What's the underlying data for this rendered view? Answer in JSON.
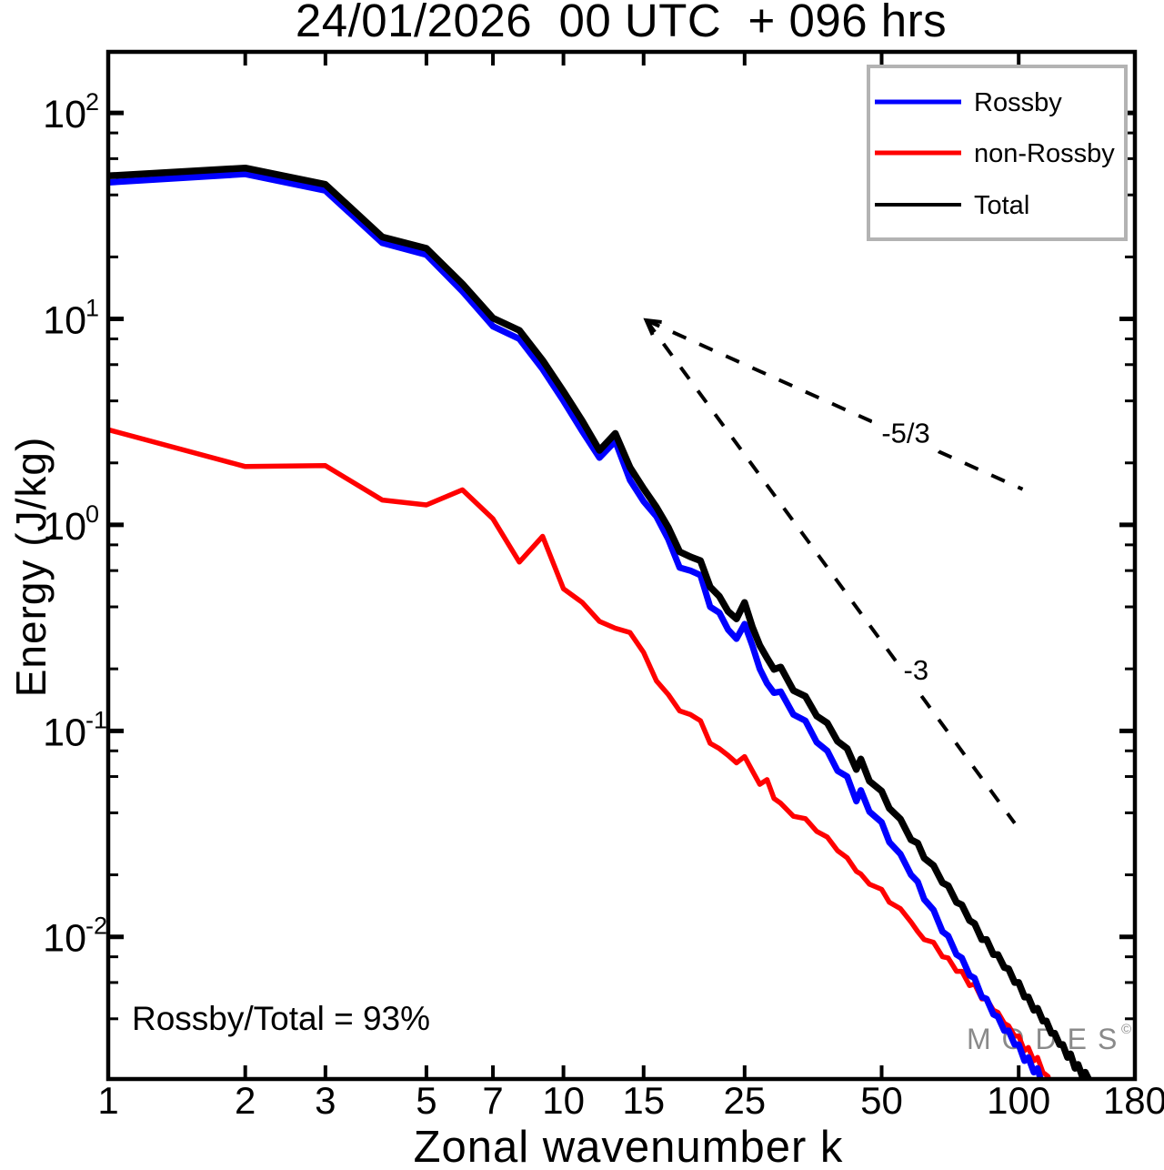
{
  "title": "24/01/2026  00 UTC  + 096 hrs",
  "annotation": "Rossby/Total = 93%",
  "watermark": {
    "text": "MODES",
    "mark": "©",
    "color": "#8a8a8a"
  },
  "axes": {
    "xlabel": "Zonal wavenumber k",
    "ylabel": "Energy (J/kg)",
    "xlim": [
      1,
      180
    ],
    "ylim": [
      0.00204,
      198
    ],
    "xticks": [
      1,
      2,
      3,
      5,
      7,
      10,
      15,
      25,
      50,
      100,
      180
    ],
    "ytick_base": "10",
    "ytick_exponents": [
      2,
      1,
      0,
      -1,
      -2
    ],
    "minor_multiples": [
      2,
      4,
      6,
      8
    ],
    "grid": false
  },
  "legend": {
    "items": [
      {
        "label": "Rossby",
        "color": "#0000ff"
      },
      {
        "label": "non-Rossby",
        "color": "#ff0000"
      },
      {
        "label": "Total",
        "color": "#000000"
      }
    ],
    "border_color": "#b3b3b3"
  },
  "ref_lines": [
    {
      "label": "-5/3",
      "x1": 15.2,
      "y1": 9.85,
      "x2": 102,
      "y2": 1.49,
      "label_x": 56.5,
      "label_y": 2.8
    },
    {
      "label": "-3",
      "x1": 15.2,
      "y1": 9.85,
      "x2": 98,
      "y2": 0.0356,
      "label_x": 59.5,
      "label_y": 0.198
    }
  ],
  "chart_data": {
    "type": "line",
    "title": "24/01/2026  00 UTC  + 096 hrs",
    "xlabel": "Zonal wavenumber k",
    "ylabel": "Energy (J/kg)",
    "xscale": "log",
    "yscale": "log",
    "xlim": [
      1,
      180
    ],
    "ylim": [
      0.00204,
      198
    ],
    "legend_position": "upper right",
    "series": [
      {
        "name": "Rossby",
        "color": "#0000ff",
        "points": [
          [
            1,
            46
          ],
          [
            2,
            50.5
          ],
          [
            3,
            42
          ],
          [
            4,
            23.4
          ],
          [
            5,
            20.5
          ],
          [
            6,
            13.6
          ],
          [
            7,
            9.2
          ],
          [
            8,
            8.0
          ],
          [
            9,
            5.7
          ],
          [
            10,
            4.0
          ],
          [
            11,
            2.85
          ],
          [
            12,
            2.12
          ],
          [
            13,
            2.55
          ],
          [
            14,
            1.65
          ],
          [
            15,
            1.3
          ],
          [
            16,
            1.1
          ],
          [
            17,
            0.85
          ],
          [
            18,
            0.62
          ],
          [
            19,
            0.6
          ],
          [
            20,
            0.57
          ],
          [
            21,
            0.4
          ],
          [
            22,
            0.375
          ],
          [
            23,
            0.31
          ],
          [
            24,
            0.28
          ],
          [
            25,
            0.33
          ],
          [
            26,
            0.26
          ],
          [
            27,
            0.2
          ],
          [
            28,
            0.17
          ],
          [
            29,
            0.153
          ],
          [
            30,
            0.155
          ],
          [
            32,
            0.12
          ],
          [
            34,
            0.112
          ],
          [
            36,
            0.088
          ],
          [
            38,
            0.08
          ],
          [
            40,
            0.064
          ],
          [
            42,
            0.06
          ],
          [
            44,
            0.0455
          ],
          [
            45,
            0.0515
          ],
          [
            47,
            0.0405
          ],
          [
            50,
            0.036
          ],
          [
            52,
            0.0288
          ],
          [
            55,
            0.0252
          ],
          [
            58,
            0.02
          ],
          [
            60,
            0.0185
          ],
          [
            62,
            0.0152
          ],
          [
            65,
            0.0135
          ],
          [
            68,
            0.0106
          ],
          [
            70,
            0.0101
          ],
          [
            73,
            0.0082
          ],
          [
            75,
            0.0079
          ],
          [
            78,
            0.0065
          ],
          [
            80,
            0.0063
          ],
          [
            83,
            0.0051
          ],
          [
            85,
            0.005
          ],
          [
            88,
            0.0042
          ],
          [
            90,
            0.0041
          ],
          [
            93,
            0.0035
          ],
          [
            95,
            0.0035
          ],
          [
            98,
            0.003
          ],
          [
            100,
            0.003
          ],
          [
            103,
            0.0025
          ],
          [
            105,
            0.0026
          ],
          [
            108,
            0.0022
          ],
          [
            110,
            0.0023
          ],
          [
            112,
            0.002
          ],
          [
            114,
            0.0018
          ]
        ]
      },
      {
        "name": "non-Rossby",
        "color": "#ff0000",
        "points": [
          [
            1,
            2.9
          ],
          [
            2,
            1.92
          ],
          [
            3,
            1.94
          ],
          [
            4,
            1.32
          ],
          [
            5,
            1.25
          ],
          [
            6,
            1.48
          ],
          [
            7,
            1.07
          ],
          [
            8,
            0.66
          ],
          [
            9,
            0.88
          ],
          [
            10,
            0.49
          ],
          [
            11,
            0.42
          ],
          [
            12,
            0.34
          ],
          [
            13,
            0.315
          ],
          [
            14,
            0.3
          ],
          [
            15,
            0.24
          ],
          [
            16,
            0.175
          ],
          [
            17,
            0.15
          ],
          [
            18,
            0.125
          ],
          [
            19,
            0.12
          ],
          [
            20,
            0.112
          ],
          [
            21,
            0.087
          ],
          [
            22,
            0.082
          ],
          [
            23,
            0.076
          ],
          [
            24,
            0.07
          ],
          [
            25,
            0.075
          ],
          [
            26,
            0.064
          ],
          [
            27,
            0.055
          ],
          [
            28,
            0.058
          ],
          [
            29,
            0.047
          ],
          [
            30,
            0.0445
          ],
          [
            32,
            0.0385
          ],
          [
            34,
            0.0375
          ],
          [
            36,
            0.0325
          ],
          [
            38,
            0.0305
          ],
          [
            40,
            0.0262
          ],
          [
            42,
            0.0242
          ],
          [
            44,
            0.0208
          ],
          [
            45,
            0.0202
          ],
          [
            47,
            0.018
          ],
          [
            50,
            0.017
          ],
          [
            52,
            0.0147
          ],
          [
            55,
            0.0137
          ],
          [
            58,
            0.0118
          ],
          [
            60,
            0.0106
          ],
          [
            62,
            0.0097
          ],
          [
            65,
            0.0094
          ],
          [
            68,
            0.008
          ],
          [
            70,
            0.0079
          ],
          [
            73,
            0.0068
          ],
          [
            75,
            0.0068
          ],
          [
            78,
            0.0058
          ],
          [
            80,
            0.0059
          ],
          [
            83,
            0.005
          ],
          [
            85,
            0.005
          ],
          [
            88,
            0.0044
          ],
          [
            90,
            0.0043
          ],
          [
            93,
            0.0038
          ],
          [
            95,
            0.0037
          ],
          [
            98,
            0.0033
          ],
          [
            100,
            0.0033
          ],
          [
            103,
            0.0028
          ],
          [
            105,
            0.0029
          ],
          [
            108,
            0.0025
          ],
          [
            110,
            0.0026
          ],
          [
            113,
            0.0022
          ],
          [
            116,
            0.0021
          ],
          [
            118,
            0.0018
          ]
        ]
      },
      {
        "name": "Total",
        "color": "#000000",
        "points": [
          [
            1,
            49.5
          ],
          [
            2,
            54
          ],
          [
            3,
            45
          ],
          [
            4,
            25
          ],
          [
            5,
            22
          ],
          [
            6,
            14.8
          ],
          [
            7,
            10.1
          ],
          [
            8,
            8.8
          ],
          [
            9,
            6.3
          ],
          [
            10,
            4.45
          ],
          [
            11,
            3.2
          ],
          [
            12,
            2.3
          ],
          [
            13,
            2.78
          ],
          [
            14,
            1.9
          ],
          [
            15,
            1.5
          ],
          [
            16,
            1.22
          ],
          [
            17,
            0.97
          ],
          [
            18,
            0.74
          ],
          [
            19,
            0.7
          ],
          [
            20,
            0.67
          ],
          [
            21,
            0.5
          ],
          [
            22,
            0.45
          ],
          [
            23,
            0.38
          ],
          [
            24,
            0.35
          ],
          [
            25,
            0.42
          ],
          [
            26,
            0.32
          ],
          [
            27,
            0.26
          ],
          [
            28,
            0.226
          ],
          [
            29,
            0.199
          ],
          [
            30,
            0.204
          ],
          [
            32,
            0.157
          ],
          [
            34,
            0.147
          ],
          [
            36,
            0.118
          ],
          [
            38,
            0.109
          ],
          [
            40,
            0.089
          ],
          [
            42,
            0.082
          ],
          [
            44,
            0.065
          ],
          [
            45,
            0.073
          ],
          [
            47,
            0.057
          ],
          [
            50,
            0.051
          ],
          [
            52,
            0.042
          ],
          [
            55,
            0.0373
          ],
          [
            58,
            0.0296
          ],
          [
            60,
            0.0285
          ],
          [
            62,
            0.0241
          ],
          [
            65,
            0.0222
          ],
          [
            68,
            0.0183
          ],
          [
            70,
            0.0177
          ],
          [
            73,
            0.0147
          ],
          [
            75,
            0.0143
          ],
          [
            78,
            0.012
          ],
          [
            80,
            0.0116
          ],
          [
            83,
            0.0097
          ],
          [
            85,
            0.0097
          ],
          [
            88,
            0.0082
          ],
          [
            90,
            0.0082
          ],
          [
            93,
            0.0071
          ],
          [
            95,
            0.007
          ],
          [
            98,
            0.006
          ],
          [
            100,
            0.006
          ],
          [
            103,
            0.0051
          ],
          [
            105,
            0.0051
          ],
          [
            108,
            0.0044
          ],
          [
            110,
            0.0045
          ],
          [
            113,
            0.0039
          ],
          [
            115,
            0.0039
          ],
          [
            118,
            0.0034
          ],
          [
            120,
            0.0034
          ],
          [
            123,
            0.003
          ],
          [
            125,
            0.003
          ],
          [
            128,
            0.0026
          ],
          [
            130,
            0.0027
          ],
          [
            133,
            0.0023
          ],
          [
            135,
            0.0024
          ],
          [
            138,
            0.0021
          ],
          [
            140,
            0.0022
          ],
          [
            143,
            0.002
          ],
          [
            146,
            0.0018
          ]
        ]
      }
    ]
  }
}
